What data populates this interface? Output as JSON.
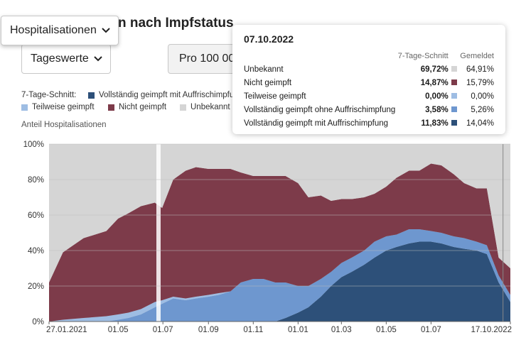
{
  "title": "n nach Impfstatus",
  "dropdowns": {
    "main": "Hospitalisationen",
    "mode": "Tageswerte",
    "norm": "Pro 100 000"
  },
  "legend": {
    "title": "7-Tage-Schnitt:",
    "items": [
      {
        "label": "Vollständig geimpft mit Auffrischimpfung",
        "color": "#2d5079"
      },
      {
        "label": "Teilweise geimpft",
        "color": "#9ebde3"
      },
      {
        "label": "Nicht geimpft",
        "color": "#7d3b4a"
      },
      {
        "label": "Unbekannt",
        "color": "#d5d5d5"
      }
    ]
  },
  "tooltip": {
    "date": "07.10.2022",
    "col_avg": "7-Tage-Schnitt",
    "col_reported": "Gemeldet",
    "rows": [
      {
        "label": "Unbekannt",
        "avg": "69,72%",
        "reported": "64,91%",
        "color": "#d5d5d5"
      },
      {
        "label": "Nicht geimpft",
        "avg": "14,87%",
        "reported": "15,79%",
        "color": "#7d3b4a"
      },
      {
        "label": "Teilweise geimpft",
        "avg": "0,00%",
        "reported": "0,00%",
        "color": "#9ebde3"
      },
      {
        "label": "Vollständig geimpft ohne Auffrischimpfung",
        "avg": "3,58%",
        "reported": "5,26%",
        "color": "#6e97cf"
      },
      {
        "label": "Vollständig geimpft mit Auffrischimpfung",
        "avg": "11,83%",
        "reported": "14,04%",
        "color": "#2d5079"
      }
    ]
  },
  "chart_data": {
    "type": "area",
    "ylabel": "Anteil Hospitalisationen",
    "ylim": [
      0,
      100
    ],
    "yticks": [
      "0%",
      "20%",
      "40%",
      "60%",
      "80%",
      "100%"
    ],
    "xticks": [
      "27.01.2021",
      "01.05",
      "01.07",
      "01.09",
      "01.11",
      "01.01",
      "01.03",
      "01.05",
      "01.07",
      "17.10.2022"
    ],
    "stacked": true,
    "x": [
      "2021-01-27",
      "2021-02-15",
      "2021-03-15",
      "2021-04-15",
      "2021-05-01",
      "2021-05-15",
      "2021-06-01",
      "2021-06-20",
      "2021-06-30",
      "2021-07-15",
      "2021-08-01",
      "2021-08-15",
      "2021-09-01",
      "2021-09-15",
      "2021-10-01",
      "2021-10-15",
      "2021-11-01",
      "2021-11-15",
      "2021-12-01",
      "2021-12-15",
      "2022-01-01",
      "2022-01-15",
      "2022-02-01",
      "2022-02-15",
      "2022-03-01",
      "2022-03-15",
      "2022-04-01",
      "2022-04-15",
      "2022-05-01",
      "2022-05-15",
      "2022-06-01",
      "2022-06-15",
      "2022-07-01",
      "2022-07-15",
      "2022-08-01",
      "2022-08-15",
      "2022-09-01",
      "2022-09-15",
      "2022-10-01",
      "2022-10-17"
    ],
    "series": [
      {
        "name": "Vollständig geimpft mit Auffrischimpfung",
        "color": "#2d5079",
        "values": [
          0,
          0,
          0,
          0,
          0,
          0,
          0,
          0,
          0,
          0,
          0,
          0,
          0,
          0,
          0,
          0,
          0,
          0,
          0,
          2,
          5,
          8,
          14,
          20,
          25,
          28,
          32,
          36,
          40,
          42,
          44,
          45,
          45,
          44,
          42,
          41,
          40,
          38,
          22,
          11
        ]
      },
      {
        "name": "Vollständig geimpft ohne Auffrischimpfung",
        "color": "#6e97cf",
        "values": [
          0,
          0,
          0,
          0,
          1,
          2,
          4,
          8,
          10,
          13,
          12,
          13,
          14,
          15,
          17,
          22,
          24,
          24,
          22,
          20,
          15,
          12,
          10,
          8,
          8,
          8,
          8,
          9,
          8,
          7,
          8,
          7,
          6,
          6,
          6,
          6,
          5,
          5,
          4,
          4
        ]
      },
      {
        "name": "Teilweise geimpft",
        "color": "#9ebde3",
        "values": [
          0,
          1,
          2,
          3,
          3,
          3,
          3,
          3,
          2,
          1,
          1,
          1,
          1,
          1,
          0,
          0,
          0,
          0,
          0,
          0,
          0,
          0,
          0,
          0,
          0,
          0,
          0,
          0,
          0,
          0,
          0,
          0,
          0,
          0,
          0,
          0,
          0,
          0,
          0,
          0
        ]
      },
      {
        "name": "Nicht geimpft",
        "color": "#7d3b4a",
        "values": [
          22,
          38,
          45,
          48,
          54,
          56,
          58,
          56,
          52,
          66,
          72,
          73,
          71,
          70,
          69,
          62,
          58,
          58,
          60,
          60,
          58,
          50,
          47,
          40,
          36,
          33,
          30,
          27,
          28,
          32,
          33,
          33,
          38,
          38,
          35,
          31,
          30,
          32,
          10,
          15
        ]
      },
      {
        "name": "Unbekannt",
        "color": "#d5d5d5",
        "values": [
          78,
          61,
          53,
          49,
          42,
          39,
          35,
          33,
          36,
          20,
          15,
          13,
          14,
          14,
          14,
          16,
          18,
          18,
          18,
          18,
          22,
          30,
          29,
          32,
          31,
          31,
          30,
          28,
          24,
          19,
          15,
          15,
          11,
          12,
          17,
          22,
          25,
          25,
          64,
          70
        ]
      }
    ]
  }
}
